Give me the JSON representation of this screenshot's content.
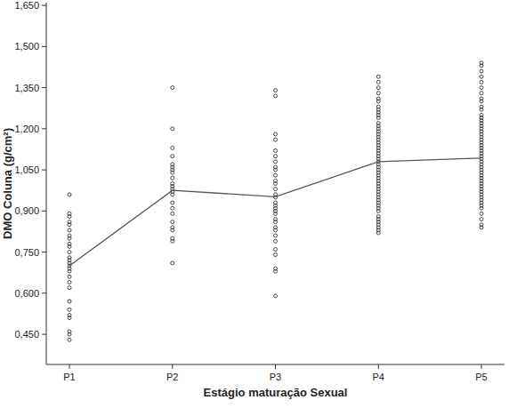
{
  "chart_data": {
    "type": "scatter",
    "x_label": "Estágio maturação Sexual",
    "y_label": "DMO Coluna (g/cm²)",
    "categories": [
      "P1",
      "P2",
      "P3",
      "P4",
      "P5"
    ],
    "ylim": [
      0.34,
      1.66
    ],
    "yticks": [
      {
        "value": 0.45,
        "label": "0,450"
      },
      {
        "value": 0.6,
        "label": "0,600"
      },
      {
        "value": 0.75,
        "label": "0,750"
      },
      {
        "value": 0.9,
        "label": "0,900"
      },
      {
        "value": 1.05,
        "label": "1,050"
      },
      {
        "value": 1.2,
        "label": "1,200"
      },
      {
        "value": 1.35,
        "label": "1,350"
      },
      {
        "value": 1.5,
        "label": "1,500"
      },
      {
        "value": 1.65,
        "label": "1,650"
      }
    ],
    "grid": false,
    "series": [
      {
        "type": "scatter",
        "marker": "open-circle",
        "color": "#333333",
        "values": [
          [
            0.96,
            0.89,
            0.88,
            0.86,
            0.85,
            0.83,
            0.81,
            0.8,
            0.78,
            0.77,
            0.75,
            0.73,
            0.72,
            0.71,
            0.7,
            0.69,
            0.68,
            0.66,
            0.64,
            0.62,
            0.57,
            0.54,
            0.52,
            0.51,
            0.46,
            0.45,
            0.43
          ],
          [
            1.35,
            1.2,
            1.13,
            1.1,
            1.07,
            1.06,
            1.05,
            1.04,
            1.02,
            1.0,
            0.99,
            0.98,
            0.97,
            0.96,
            0.93,
            0.91,
            0.89,
            0.86,
            0.84,
            0.83,
            0.8,
            0.79,
            0.71
          ],
          [
            1.34,
            1.32,
            1.18,
            1.16,
            1.12,
            1.1,
            1.08,
            1.06,
            1.05,
            1.03,
            1.01,
            1.0,
            0.98,
            0.96,
            0.95,
            0.93,
            0.92,
            0.91,
            0.9,
            0.89,
            0.87,
            0.86,
            0.84,
            0.83,
            0.81,
            0.79,
            0.76,
            0.74,
            0.69,
            0.68,
            0.59
          ],
          [
            1.39,
            1.37,
            1.35,
            1.33,
            1.31,
            1.3,
            1.28,
            1.27,
            1.26,
            1.25,
            1.24,
            1.22,
            1.21,
            1.2,
            1.19,
            1.18,
            1.17,
            1.16,
            1.15,
            1.14,
            1.13,
            1.12,
            1.11,
            1.1,
            1.09,
            1.08,
            1.07,
            1.06,
            1.05,
            1.04,
            1.03,
            1.02,
            1.01,
            1.0,
            0.99,
            0.98,
            0.97,
            0.96,
            0.95,
            0.94,
            0.93,
            0.92,
            0.91,
            0.9,
            0.88,
            0.87,
            0.86,
            0.85,
            0.84,
            0.83,
            0.82
          ],
          [
            1.44,
            1.43,
            1.41,
            1.39,
            1.37,
            1.35,
            1.33,
            1.31,
            1.3,
            1.28,
            1.27,
            1.25,
            1.24,
            1.23,
            1.22,
            1.21,
            1.2,
            1.19,
            1.18,
            1.17,
            1.16,
            1.15,
            1.14,
            1.13,
            1.12,
            1.11,
            1.1,
            1.09,
            1.08,
            1.07,
            1.06,
            1.05,
            1.04,
            1.03,
            1.02,
            1.01,
            1.0,
            0.99,
            0.98,
            0.97,
            0.96,
            0.95,
            0.94,
            0.93,
            0.92,
            0.91,
            0.89,
            0.87,
            0.85,
            0.84
          ]
        ]
      },
      {
        "type": "line",
        "line_style": "solid",
        "color": "#555555",
        "values": [
          0.7,
          0.975,
          0.952,
          1.08,
          1.093
        ]
      }
    ]
  }
}
